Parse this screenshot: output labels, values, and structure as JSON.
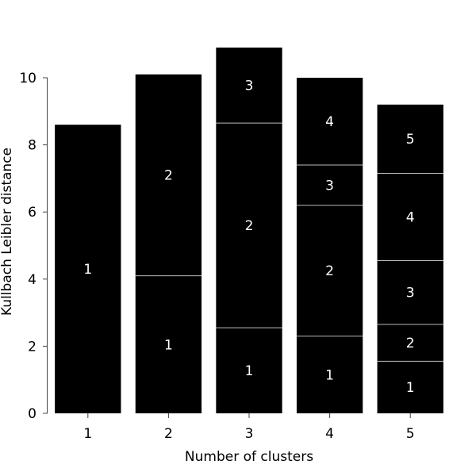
{
  "chart_data": {
    "type": "bar",
    "stacked": true,
    "title": "",
    "xlabel": "Number of clusters",
    "ylabel": "Kullbach Leibler distance",
    "categories": [
      "1",
      "2",
      "3",
      "4",
      "5"
    ],
    "stacks": [
      {
        "category": "1",
        "segments": [
          {
            "label": "1",
            "value": 8.6
          }
        ]
      },
      {
        "category": "2",
        "segments": [
          {
            "label": "1",
            "value": 4.1
          },
          {
            "label": "2",
            "value": 6.0
          }
        ]
      },
      {
        "category": "3",
        "segments": [
          {
            "label": "1",
            "value": 2.55
          },
          {
            "label": "2",
            "value": 6.1
          },
          {
            "label": "3",
            "value": 2.25
          }
        ]
      },
      {
        "category": "4",
        "segments": [
          {
            "label": "1",
            "value": 2.3
          },
          {
            "label": "2",
            "value": 3.9
          },
          {
            "label": "3",
            "value": 1.2
          },
          {
            "label": "4",
            "value": 2.6
          }
        ]
      },
      {
        "category": "5",
        "segments": [
          {
            "label": "1",
            "value": 1.55
          },
          {
            "label": "2",
            "value": 1.1
          },
          {
            "label": "3",
            "value": 1.9
          },
          {
            "label": "4",
            "value": 2.6
          },
          {
            "label": "5",
            "value": 2.05
          }
        ]
      }
    ],
    "ylim": [
      0,
      10
    ],
    "yticks": [
      0,
      2,
      4,
      6,
      8,
      10
    ],
    "grid": false,
    "legend": "none",
    "colors": {
      "bar": "#000000",
      "segment_divider": "#bbbbbb",
      "segment_text": "#ffffff",
      "axis": "#444444",
      "background": "#ffffff"
    }
  }
}
